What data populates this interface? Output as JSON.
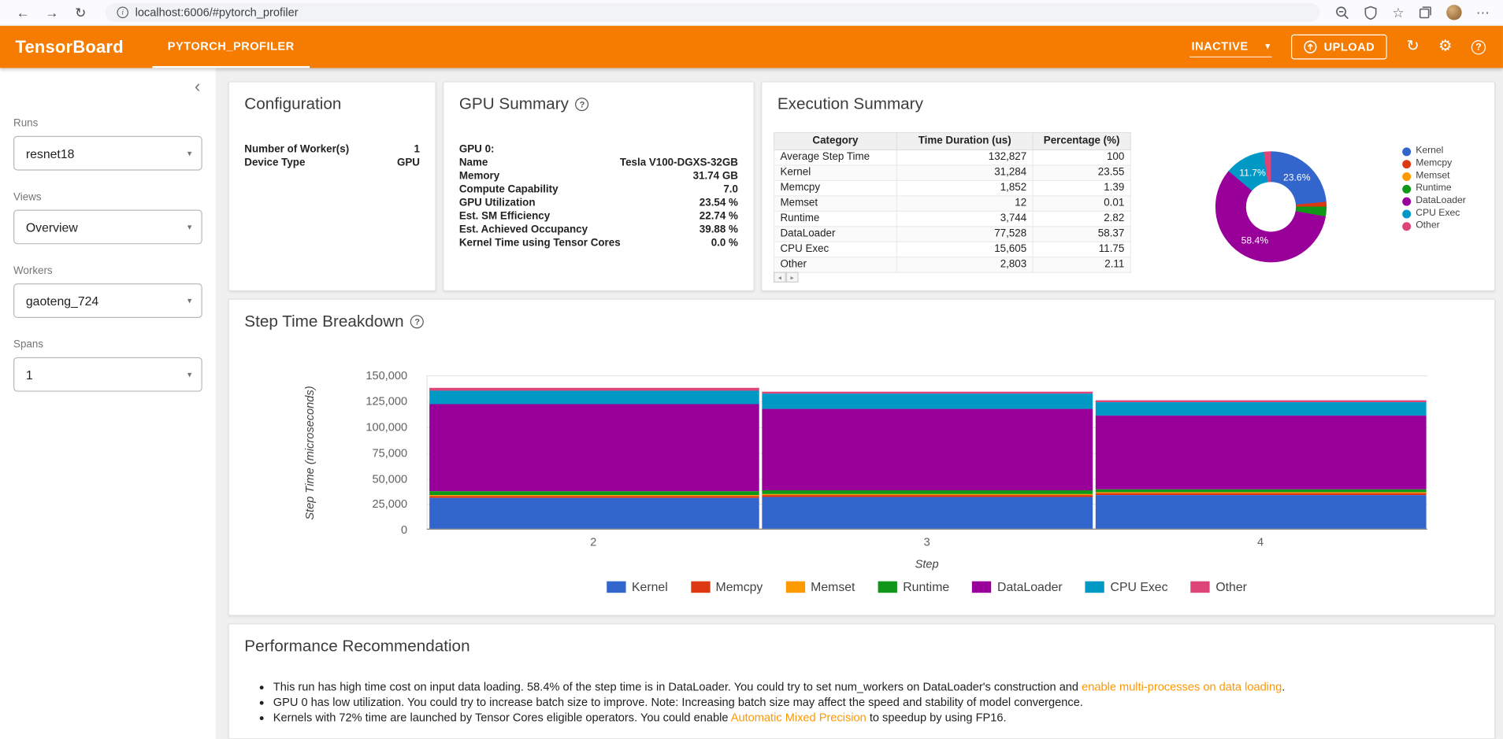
{
  "browser": {
    "url": "localhost:6006/#pytorch_profiler"
  },
  "icons": {
    "back": "←",
    "forward": "→",
    "reload": "↻",
    "info": "i",
    "star": "☆",
    "more": "⋯",
    "collapse": "‹",
    "caret": "▾",
    "gear": "⚙",
    "help": "?",
    "upload_arrow": "↑",
    "scroll_left": "◂",
    "scroll_right": "▸"
  },
  "header": {
    "brand": "TensorBoard",
    "tab": "PYTORCH_PROFILER",
    "status": "INACTIVE",
    "upload_label": "UPLOAD"
  },
  "sidebar": {
    "fields": [
      {
        "label": "Runs",
        "value": "resnet18"
      },
      {
        "label": "Views",
        "value": "Overview"
      },
      {
        "label": "Workers",
        "value": "gaoteng_724"
      },
      {
        "label": "Spans",
        "value": "1"
      }
    ]
  },
  "configuration": {
    "title": "Configuration",
    "rows": [
      {
        "label": "Number of Worker(s)",
        "value": "1"
      },
      {
        "label": "Device Type",
        "value": "GPU"
      }
    ]
  },
  "gpu_summary": {
    "title": "GPU Summary",
    "group": "GPU 0:",
    "rows": [
      {
        "label": "Name",
        "value": "Tesla V100-DGXS-32GB"
      },
      {
        "label": "Memory",
        "value": "31.74 GB"
      },
      {
        "label": "Compute Capability",
        "value": "7.0"
      },
      {
        "label": "GPU Utilization",
        "value": "23.54 %"
      },
      {
        "label": "Est. SM Efficiency",
        "value": "22.74 %"
      },
      {
        "label": "Est. Achieved Occupancy",
        "value": "39.88 %"
      },
      {
        "label": "Kernel Time using Tensor Cores",
        "value": "0.0 %"
      }
    ]
  },
  "execution_summary": {
    "title": "Execution Summary",
    "table": {
      "headers": [
        "Category",
        "Time Duration (us)",
        "Percentage (%)"
      ],
      "rows": [
        [
          "Average Step Time",
          "132,827",
          "100"
        ],
        [
          "Kernel",
          "31,284",
          "23.55"
        ],
        [
          "Memcpy",
          "1,852",
          "1.39"
        ],
        [
          "Memset",
          "12",
          "0.01"
        ],
        [
          "Runtime",
          "3,744",
          "2.82"
        ],
        [
          "DataLoader",
          "77,528",
          "58.37"
        ],
        [
          "CPU Exec",
          "15,605",
          "11.75"
        ],
        [
          "Other",
          "2,803",
          "2.11"
        ]
      ]
    }
  },
  "colors": {
    "accent": "#f57c00",
    "link": "#ff9800",
    "kernel": "#3366cc",
    "memcpy": "#dc3912",
    "memset": "#ff9900",
    "runtime": "#109618",
    "dataloader": "#990099",
    "cpu_exec": "#0099c6",
    "other": "#dd4477"
  },
  "chart_data": [
    {
      "type": "pie",
      "donut": true,
      "title": "Execution Summary breakdown",
      "labels": [
        "Kernel",
        "Memcpy",
        "Memset",
        "Runtime",
        "DataLoader",
        "CPU Exec",
        "Other"
      ],
      "values": [
        23.55,
        1.39,
        0.01,
        2.82,
        58.37,
        11.75,
        2.11
      ],
      "colors": [
        "#3366cc",
        "#dc3912",
        "#ff9900",
        "#109618",
        "#990099",
        "#0099c6",
        "#dd4477"
      ],
      "slice_labels": [
        "23.6%",
        "",
        "",
        "",
        "58.4%",
        "11.7%",
        ""
      ],
      "legend_position": "right"
    },
    {
      "type": "bar",
      "stacked": true,
      "title": "Step Time Breakdown",
      "categories": [
        "2",
        "3",
        "4"
      ],
      "series": [
        {
          "name": "Kernel",
          "color": "#3366cc",
          "values": [
            30000,
            31000,
            32500
          ]
        },
        {
          "name": "Memcpy",
          "color": "#dc3912",
          "values": [
            1900,
            1850,
            1800
          ]
        },
        {
          "name": "Memset",
          "color": "#ff9900",
          "values": [
            12,
            12,
            12
          ]
        },
        {
          "name": "Runtime",
          "color": "#109618",
          "values": [
            3800,
            3750,
            3650
          ]
        },
        {
          "name": "DataLoader",
          "color": "#990099",
          "values": [
            85000,
            79500,
            71500
          ]
        },
        {
          "name": "CPU Exec",
          "color": "#0099c6",
          "values": [
            13000,
            14200,
            12500
          ]
        },
        {
          "name": "Other",
          "color": "#dd4477",
          "values": [
            2800,
            2700,
            2550
          ]
        }
      ],
      "xlabel": "Step",
      "ylabel": "Step Time (microseconds)",
      "ylim": [
        0,
        150000
      ],
      "yticks": [
        "0",
        "25,000",
        "50,000",
        "75,000",
        "100,000",
        "125,000",
        "150,000"
      ],
      "legend_position": "bottom",
      "grid": true
    }
  ],
  "performance": {
    "title": "Performance Recommendation",
    "items": [
      {
        "pre": "This run has high time cost on input data loading. 58.4% of the step time is in DataLoader. You could try to set num_workers on DataLoader's construction and ",
        "link": "enable multi-processes on data loading",
        "post": "."
      },
      {
        "pre": "GPU 0 has low utilization. You could try to increase batch size to improve. Note: Increasing batch size may affect the speed and stability of model convergence.",
        "link": "",
        "post": ""
      },
      {
        "pre": "Kernels with 72% time are launched by Tensor Cores eligible operators. You could enable ",
        "link": "Automatic Mixed Precision",
        "post": " to speedup by using FP16."
      }
    ]
  }
}
